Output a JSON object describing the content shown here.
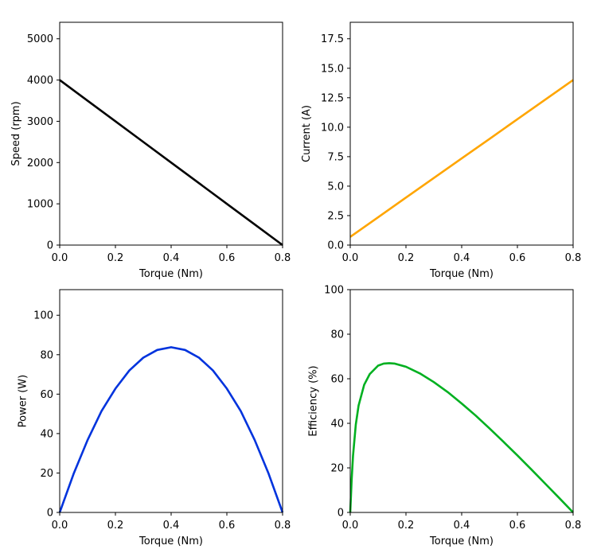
{
  "chart_data": [
    {
      "type": "line",
      "id": "speed",
      "xlabel": "Torque (Nm)",
      "ylabel": "Speed (rpm)",
      "xlim": [
        0,
        0.8
      ],
      "ylim": [
        0,
        5400
      ],
      "xticks": [
        0.0,
        0.2,
        0.4,
        0.6,
        0.8
      ],
      "xtick_labels": [
        "0.0",
        "0.2",
        "0.4",
        "0.6",
        "0.8"
      ],
      "yticks": [
        0,
        1000,
        2000,
        3000,
        4000,
        5000
      ],
      "ytick_labels": [
        "0",
        "1000",
        "2000",
        "3000",
        "4000",
        "5000"
      ],
      "color": "#000000",
      "series": [
        {
          "x": [
            0,
            0.1,
            0.2,
            0.3,
            0.4,
            0.5,
            0.6,
            0.7,
            0.8
          ],
          "y": [
            4000,
            3500,
            3000,
            2500,
            2000,
            1500,
            1000,
            500,
            0
          ]
        }
      ]
    },
    {
      "type": "line",
      "id": "current",
      "xlabel": "Torque (Nm)",
      "ylabel": "Current (A)",
      "xlim": [
        0,
        0.8
      ],
      "ylim": [
        0,
        18.9
      ],
      "xticks": [
        0.0,
        0.2,
        0.4,
        0.6,
        0.8
      ],
      "xtick_labels": [
        "0.0",
        "0.2",
        "0.4",
        "0.6",
        "0.8"
      ],
      "yticks": [
        0,
        2.5,
        5,
        7.5,
        10,
        12.5,
        15,
        17.5
      ],
      "ytick_labels": [
        "0.0",
        "2.5",
        "5.0",
        "7.5",
        "10.0",
        "12.5",
        "15.0",
        "17.5"
      ],
      "color": "#ffa500",
      "series": [
        {
          "x": [
            0,
            0.1,
            0.2,
            0.3,
            0.4,
            0.5,
            0.6,
            0.7,
            0.8
          ],
          "y": [
            0.7,
            2.36,
            4.03,
            5.69,
            7.35,
            9.01,
            10.68,
            12.34,
            14.0
          ]
        }
      ]
    },
    {
      "type": "line",
      "id": "power",
      "xlabel": "Torque (Nm)",
      "ylabel": "Power (W)",
      "xlim": [
        0,
        0.8
      ],
      "ylim": [
        0,
        113
      ],
      "xticks": [
        0.0,
        0.2,
        0.4,
        0.6,
        0.8
      ],
      "xtick_labels": [
        "0.0",
        "0.2",
        "0.4",
        "0.6",
        "0.8"
      ],
      "yticks": [
        0,
        20,
        40,
        60,
        80,
        100
      ],
      "ytick_labels": [
        "0",
        "20",
        "40",
        "60",
        "80",
        "100"
      ],
      "color": "#0033dd",
      "series": [
        {
          "x": [
            0,
            0.05,
            0.1,
            0.15,
            0.2,
            0.25,
            0.3,
            0.35,
            0.4,
            0.45,
            0.5,
            0.55,
            0.6,
            0.65,
            0.7,
            0.75,
            0.8
          ],
          "y": [
            0,
            19.6,
            36.7,
            51.4,
            62.8,
            72.0,
            78.5,
            82.4,
            83.8,
            82.4,
            78.5,
            72.0,
            62.8,
            51.4,
            36.7,
            19.6,
            0
          ]
        }
      ]
    },
    {
      "type": "line",
      "id": "efficiency",
      "xlabel": "Torque (Nm)",
      "ylabel": "Efficiency (%)",
      "xlim": [
        0,
        0.8
      ],
      "ylim": [
        0,
        100
      ],
      "xticks": [
        0.0,
        0.2,
        0.4,
        0.6,
        0.8
      ],
      "xtick_labels": [
        "0.0",
        "0.2",
        "0.4",
        "0.6",
        "0.8"
      ],
      "yticks": [
        0,
        20,
        40,
        60,
        80,
        100
      ],
      "ytick_labels": [
        "0",
        "20",
        "40",
        "60",
        "80",
        "100"
      ],
      "color": "#00b020",
      "series": [
        {
          "x": [
            0,
            0.005,
            0.01,
            0.02,
            0.03,
            0.05,
            0.07,
            0.1,
            0.12,
            0.14,
            0.16,
            0.2,
            0.25,
            0.3,
            0.35,
            0.4,
            0.45,
            0.5,
            0.55,
            0.6,
            0.65,
            0.7,
            0.75,
            0.8
          ],
          "y": [
            0,
            14.5,
            25.5,
            39.5,
            48.0,
            57.3,
            62.1,
            65.9,
            66.8,
            67.0,
            66.8,
            65.4,
            62.4,
            58.5,
            54.0,
            48.9,
            43.5,
            37.7,
            31.7,
            25.6,
            19.3,
            12.9,
            6.5,
            0
          ]
        }
      ]
    }
  ]
}
